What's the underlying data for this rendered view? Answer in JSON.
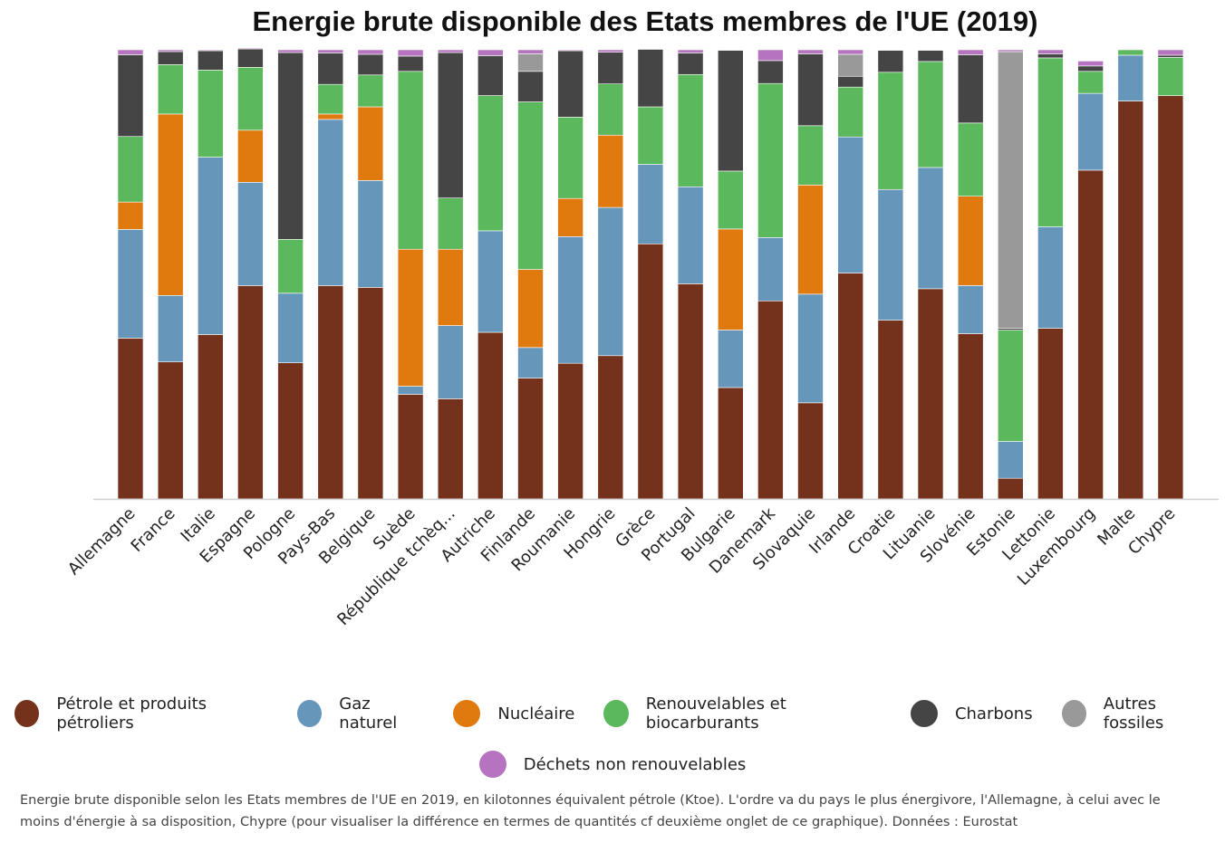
{
  "chart_data": {
    "type": "bar",
    "stacked": true,
    "normalized": true,
    "title": "Energie brute disponible des Etats membres de l'UE (2019)",
    "caption": "Energie brute disponible selon les Etats membres de l'UE en 2019, en kilotonnes équivalent pétrole (Ktoe). L'ordre va du pays le plus énergivore, l'Allemagne, à celui avec le moins d'énergie à sa disposition, Chypre (pour visualiser la différence en termes de quantités cf deuxième onglet de ce graphique). Données : Eurostat",
    "categories": [
      "Allemagne",
      "France",
      "Italie",
      "Espagne",
      "Pologne",
      "Pays-Bas",
      "Belgique",
      "Suède",
      "République tchèq...",
      "Autriche",
      "Finlande",
      "Roumanie",
      "Hongrie",
      "Grèce",
      "Portugal",
      "Bulgarie",
      "Danemark",
      "Slovaquie",
      "Irlande",
      "Croatie",
      "Lituanie",
      "Slovénie",
      "Estonie",
      "Lettonie",
      "Luxembourg",
      "Malte",
      "Chypre"
    ],
    "ylim": [
      0,
      100
    ],
    "legend_position": "bottom",
    "series": [
      {
        "name": "Pétrole et produits pétroliers",
        "color": "#74321c",
        "values": [
          35.8,
          30.5,
          36.6,
          47.5,
          30.3,
          47.5,
          47.1,
          23.3,
          22.3,
          37.1,
          26.9,
          30.2,
          31.9,
          56.8,
          47.9,
          24.8,
          44.1,
          21.4,
          50.3,
          39.8,
          46.8,
          36.8,
          4.6,
          38.0,
          73.2,
          88.6,
          89.8
        ]
      },
      {
        "name": "Gaz naturel",
        "color": "#6697bb",
        "values": [
          24.2,
          14.8,
          39.5,
          23.0,
          15.5,
          37.0,
          23.8,
          1.8,
          16.3,
          22.6,
          6.8,
          28.2,
          33.0,
          17.7,
          21.6,
          12.8,
          14.1,
          24.2,
          30.3,
          29.1,
          27.0,
          10.7,
          8.2,
          22.6,
          17.1,
          10.2,
          0.0
        ]
      },
      {
        "name": "Nucléaire",
        "color": "#e07a0f",
        "values": [
          6.1,
          40.4,
          0.0,
          11.6,
          0.0,
          1.2,
          16.4,
          30.5,
          17.0,
          0.0,
          17.4,
          8.5,
          16.1,
          0.0,
          0.0,
          22.5,
          0.0,
          24.3,
          0.0,
          0.0,
          0.0,
          19.9,
          0.0,
          0.0,
          0.0,
          0.0,
          0.0
        ]
      },
      {
        "name": "Renouvelables et biocarburants",
        "color": "#5cb85c",
        "values": [
          14.6,
          11.0,
          19.4,
          14.0,
          12.0,
          6.6,
          7.1,
          39.6,
          11.4,
          30.1,
          37.3,
          18.1,
          11.4,
          12.8,
          25.0,
          12.9,
          34.3,
          13.2,
          11.1,
          26.1,
          23.6,
          16.3,
          24.8,
          37.6,
          4.9,
          1.2,
          8.5
        ]
      },
      {
        "name": "Charbons",
        "color": "#454545",
        "values": [
          18.2,
          2.9,
          4.3,
          4.1,
          41.6,
          7.0,
          4.6,
          3.4,
          32.4,
          8.9,
          6.8,
          14.8,
          7.1,
          12.8,
          4.8,
          26.9,
          5.1,
          16.0,
          2.4,
          4.9,
          2.5,
          15.2,
          0.4,
          0.9,
          1.2,
          0.0,
          0.5
        ]
      },
      {
        "name": "Autres fossiles",
        "color": "#999999",
        "values": [
          0.0,
          0.0,
          0.0,
          0.0,
          0.0,
          0.0,
          0.0,
          0.0,
          0.0,
          0.0,
          3.9,
          0.0,
          0.0,
          0.0,
          0.0,
          0.0,
          0.0,
          0.0,
          4.9,
          0.0,
          0.0,
          0.0,
          61.6,
          0.0,
          0.0,
          0.0,
          0.0
        ]
      },
      {
        "name": "Déchets non renouvelables",
        "color": "#b673c0",
        "values": [
          1.1,
          0.4,
          0.2,
          0.2,
          0.6,
          0.7,
          1.0,
          1.4,
          0.6,
          1.3,
          0.9,
          0.2,
          0.5,
          0.0,
          0.7,
          0.1,
          2.4,
          0.9,
          1.0,
          0.1,
          0.1,
          1.1,
          0.4,
          0.9,
          1.1,
          0.0,
          1.2
        ]
      }
    ]
  }
}
